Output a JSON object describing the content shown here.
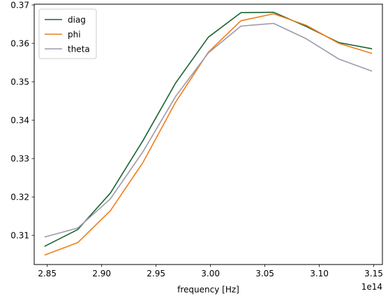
{
  "chart_data": {
    "type": "line",
    "title": "",
    "xlabel": "frequency [Hz]",
    "ylabel": "",
    "x_offset_label": "1e14",
    "x_scale_display": 100000000000000.0,
    "x": [
      284800000000000.0,
      287800000000000.0,
      290800000000000.0,
      293800000000000.0,
      296800000000000.0,
      299800000000000.0,
      302800000000000.0,
      305800000000000.0,
      308800000000000.0,
      311800000000000.0,
      314800000000000.0
    ],
    "xlim": [
      283800000000000.0,
      315800000000000.0
    ],
    "ylim": [
      0.3024,
      0.3702
    ],
    "xticks": [
      285000000000000.0,
      290000000000000.0,
      295000000000000.0,
      300000000000000.0,
      305000000000000.0,
      310000000000000.0,
      315000000000000.0
    ],
    "xtick_labels": [
      "2.85",
      "2.90",
      "2.95",
      "3.00",
      "3.05",
      "3.10",
      "3.15"
    ],
    "yticks": [
      0.31,
      0.32,
      0.33,
      0.34,
      0.35,
      0.36,
      0.37
    ],
    "ytick_labels": [
      "0.31",
      "0.32",
      "0.33",
      "0.34",
      "0.35",
      "0.36",
      "0.37"
    ],
    "grid": false,
    "legend_position": "upper-left",
    "series": [
      {
        "name": "diag",
        "color": "#1a6332",
        "values": [
          0.3072,
          0.3115,
          0.321,
          0.3347,
          0.3497,
          0.3616,
          0.368,
          0.3681,
          0.3644,
          0.3602,
          0.3586
        ]
      },
      {
        "name": "phi",
        "color": "#ef7d1a",
        "values": [
          0.3049,
          0.3081,
          0.3164,
          0.329,
          0.3447,
          0.3577,
          0.3659,
          0.3677,
          0.3647,
          0.36,
          0.3574
        ]
      },
      {
        "name": "theta",
        "color": "#9c9aa8",
        "values": [
          0.3096,
          0.3119,
          0.3195,
          0.3318,
          0.3462,
          0.3575,
          0.3645,
          0.3652,
          0.3612,
          0.3559,
          0.3528
        ]
      }
    ]
  }
}
